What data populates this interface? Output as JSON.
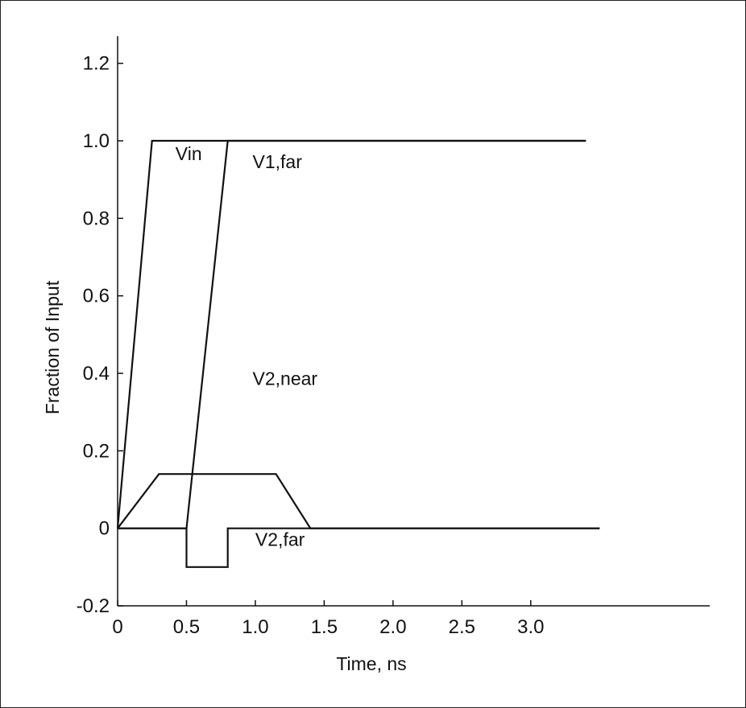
{
  "chart_data": {
    "type": "line",
    "title": "",
    "xlabel": "Time, ns",
    "ylabel": "Fraction of Input",
    "xlim": [
      0,
      4.3
    ],
    "ylim": [
      -0.2,
      1.27
    ],
    "x_ticks": [
      {
        "value": 0,
        "label": "0"
      },
      {
        "value": 0.5,
        "label": "0.5"
      },
      {
        "value": 1.0,
        "label": "1.0"
      },
      {
        "value": 1.5,
        "label": "1.5"
      },
      {
        "value": 2.0,
        "label": "2.0"
      },
      {
        "value": 2.5,
        "label": "2.5"
      },
      {
        "value": 3.0,
        "label": "3.0"
      }
    ],
    "y_ticks": [
      {
        "value": -0.2,
        "label": "-0.2"
      },
      {
        "value": 0,
        "label": "0"
      },
      {
        "value": 0.2,
        "label": "0.2"
      },
      {
        "value": 0.4,
        "label": "0.4"
      },
      {
        "value": 0.6,
        "label": "0.6"
      },
      {
        "value": 0.8,
        "label": "0.8"
      },
      {
        "value": 1.0,
        "label": "1.0"
      },
      {
        "value": 1.2,
        "label": "1.2"
      }
    ],
    "grid": false,
    "legend": "none",
    "series": [
      {
        "name": "Vin",
        "label_at": [
          0.42,
          0.95
        ],
        "x": [
          0,
          0.25,
          3.4
        ],
        "y": [
          0,
          1.0,
          1.0
        ]
      },
      {
        "name": "V1,far",
        "label_at": [
          0.98,
          0.93
        ],
        "x": [
          0,
          0.5,
          0.8,
          3.4
        ],
        "y": [
          0,
          0,
          1.0,
          1.0
        ]
      },
      {
        "name": "V2,near",
        "label_at": [
          0.98,
          0.37
        ],
        "x": [
          0,
          0.3,
          1.15,
          1.4,
          3.5
        ],
        "y": [
          0,
          0.14,
          0.14,
          0,
          0
        ]
      },
      {
        "name": "V2,far",
        "label_at": [
          1.0,
          -0.045
        ],
        "x": [
          0,
          0.5,
          0.5,
          0.8,
          0.8,
          3.5
        ],
        "y": [
          0,
          0,
          -0.1,
          -0.1,
          0,
          0
        ]
      }
    ]
  }
}
